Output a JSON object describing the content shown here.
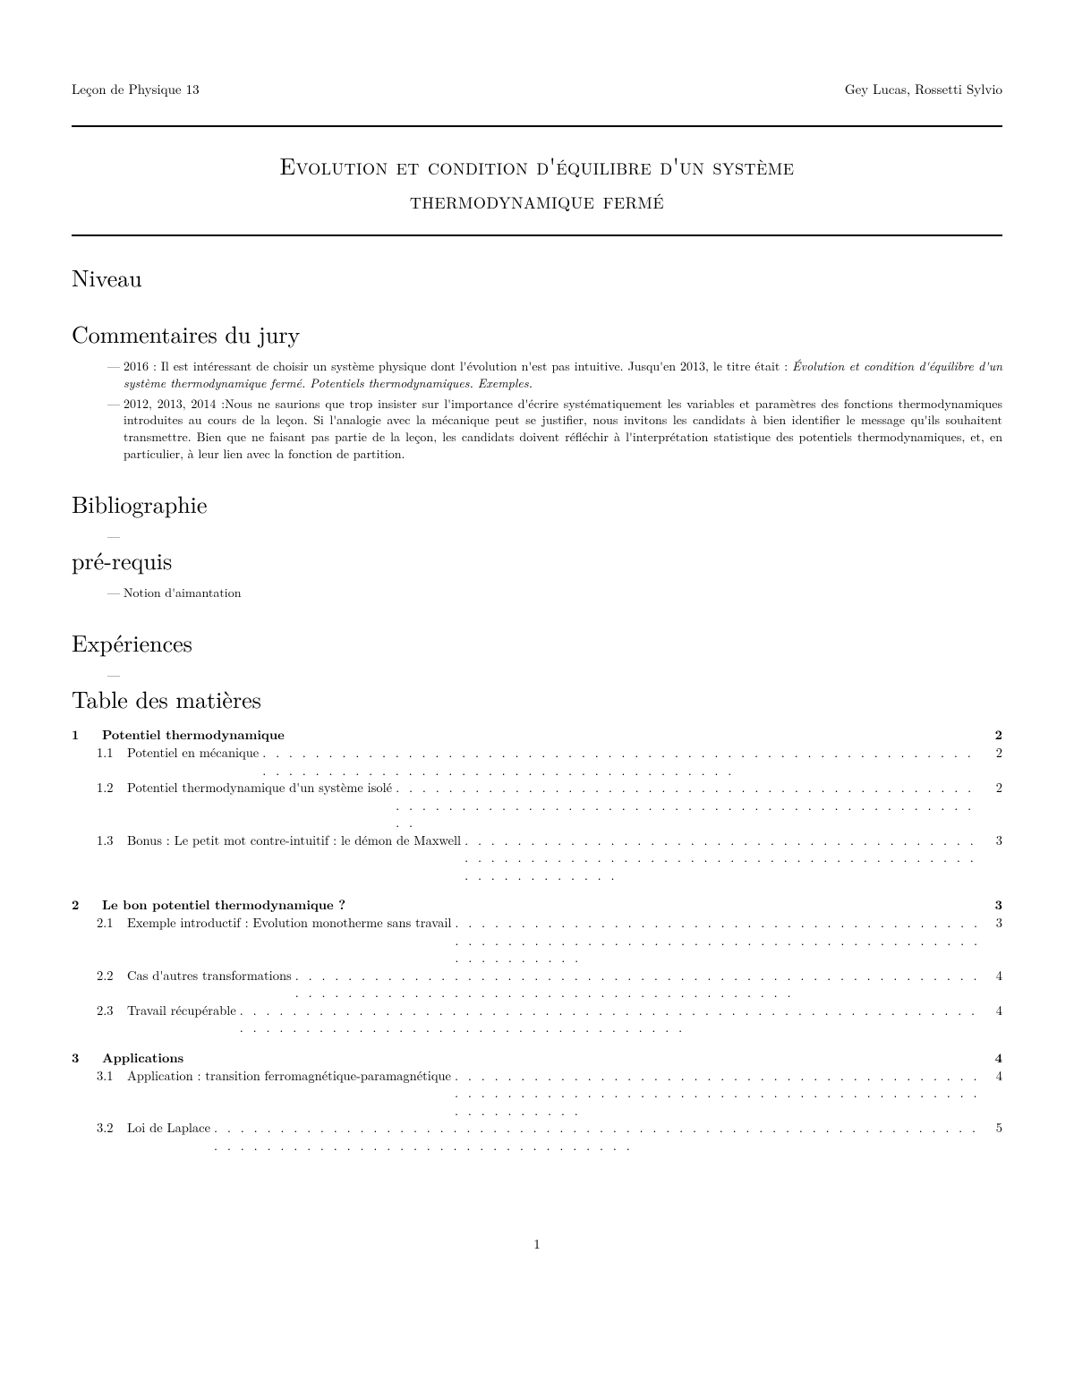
{
  "header": {
    "left": "Leçon de Physique 13",
    "right": "Gey Lucas, Rossetti Sylvio"
  },
  "title_line1": "Evolution et condition d'équilibre d'un système",
  "title_line2": "thermodynamique fermé",
  "sections": {
    "niveau": "Niveau",
    "commentaires": "Commentaires du jury",
    "bibliographie": "Bibliographie",
    "prerequis": "pré-requis",
    "experiences": "Expériences",
    "toc": "Table des matières"
  },
  "jury": {
    "item1_prefix": "2016 : Il est intéressant de choisir un système physique dont l'évolution n'est pas intuitive. Jusqu'en 2013, le titre était : ",
    "item1_italic": "Évolution et condition d'équilibre d'un système thermodynamique fermé. Potentiels thermodynamiques. Exemples.",
    "item2": "2012, 2013, 2014 :Nous ne saurions que trop insister sur l'importance d'écrire systématiquement les variables et paramètres des fonctions thermodynamiques introduites au cours de la leçon. Si l'analogie avec la mécanique peut se justifier, nous invitons les candidats à bien identifier le message qu'ils souhaitent transmettre. Bien que ne faisant pas partie de la leçon, les candidats doivent réfléchir à l'interprétation statistique des potentiels thermodynamiques, et, en particulier, à leur lien avec la fonction de partition."
  },
  "prerequis_item": "Notion d'aimantation",
  "toc": [
    {
      "type": "sec",
      "num": "1",
      "label": "Potentiel thermodynamique",
      "page": "2"
    },
    {
      "type": "sub",
      "num": "1.1",
      "label": "Potentiel en mécanique",
      "page": "2"
    },
    {
      "type": "sub",
      "num": "1.2",
      "label": "Potentiel thermodynamique d'un système isolé",
      "page": "2"
    },
    {
      "type": "sub",
      "num": "1.3",
      "label": "Bonus : Le petit mot contre-intuitif : le démon de Maxwell",
      "page": "3"
    },
    {
      "type": "sec",
      "num": "2",
      "label": "Le bon potentiel thermodynamique ?",
      "page": "3"
    },
    {
      "type": "sub",
      "num": "2.1",
      "label": "Exemple introductif : Evolution monotherme sans travail",
      "page": "3"
    },
    {
      "type": "sub",
      "num": "2.2",
      "label": "Cas d'autres transformations",
      "page": "4"
    },
    {
      "type": "sub",
      "num": "2.3",
      "label": "Travail récupérable",
      "page": "4"
    },
    {
      "type": "sec",
      "num": "3",
      "label": "Applications",
      "page": "4"
    },
    {
      "type": "sub",
      "num": "3.1",
      "label": "Application : transition ferromagnétique-paramagnétique",
      "page": "4"
    },
    {
      "type": "sub",
      "num": "3.2",
      "label": "Loi de Laplace",
      "page": "5"
    }
  ],
  "page_number": "1"
}
